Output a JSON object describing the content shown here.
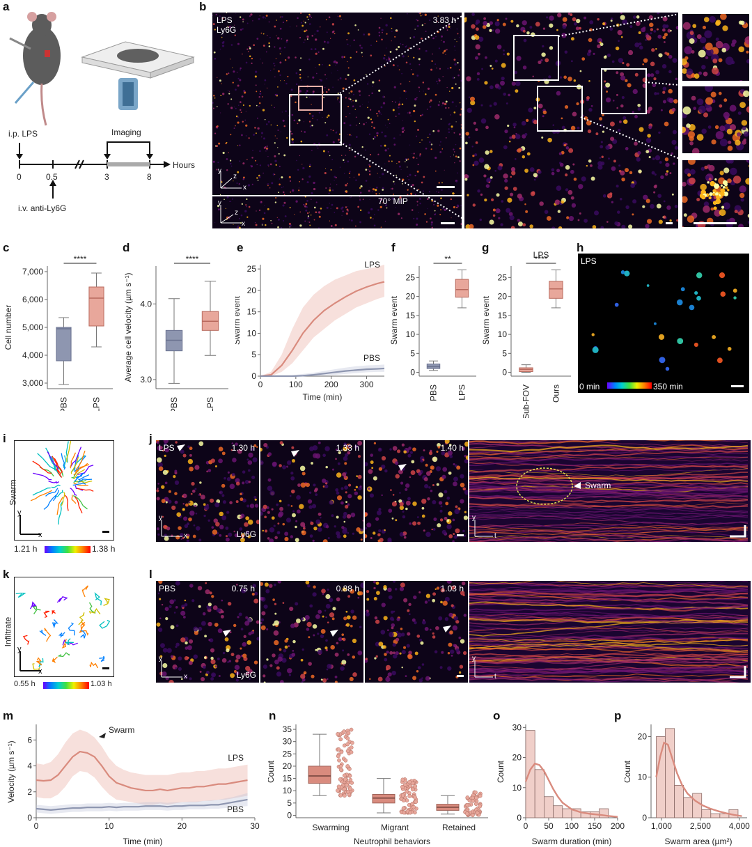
{
  "panel_labels": [
    "a",
    "b",
    "c",
    "d",
    "e",
    "f",
    "g",
    "h",
    "i",
    "j",
    "k",
    "l",
    "m",
    "n",
    "o",
    "p"
  ],
  "colors": {
    "lps": "#d98b7e",
    "lps_fill": "#e8a79b",
    "pbs": "#8e96b0",
    "pbs_fill": "#b9c0d6",
    "inferno_bg": "#0d0418"
  },
  "panel_a": {
    "ip_label": "i.p. LPS",
    "iv_label": "i.v. anti-Ly6G",
    "imaging_label": "Imaging",
    "axis_label": "Hours",
    "ticks": [
      "0",
      "0.5",
      "3",
      "8"
    ]
  },
  "panel_b": {
    "label_lps": "LPS",
    "label_ly6g": "Ly6G",
    "time": "3.83 h",
    "mip_label": "70° MIP",
    "axes": {
      "y": "y",
      "z": "z",
      "x": "x"
    }
  },
  "panel_h": {
    "label": "LPS",
    "colorbar_min": "0 min",
    "colorbar_max": "350 min"
  },
  "panel_i": {
    "side_label": "Swarm",
    "colorbar_min": "1.21 h",
    "colorbar_max": "1.38 h",
    "axes": {
      "y": "y",
      "x": "x"
    }
  },
  "panel_j": {
    "label": "LPS",
    "times": [
      "1.30 h",
      "1.33 h",
      "1.40 h"
    ],
    "stain": "Ly6G",
    "swarm_label": "Swarm",
    "axes": {
      "y": "y",
      "x": "x",
      "t": "t"
    }
  },
  "panel_k": {
    "side_label": "Infiltrate",
    "colorbar_min": "0.55 h",
    "colorbar_max": "1.03 h",
    "axes": {
      "y": "y",
      "x": "x"
    }
  },
  "panel_l": {
    "label": "PBS",
    "times": [
      "0.75 h",
      "0.88 h",
      "1.03 h"
    ],
    "stain": "Ly6G",
    "axes": {
      "y": "y",
      "x": "x",
      "t": "t"
    }
  },
  "chart_data": [
    {
      "id": "c",
      "type": "box",
      "ylabel": "Cell number",
      "categories": [
        "PBS",
        "LPS"
      ],
      "ylim": [
        2800,
        7200
      ],
      "yticks": [
        3000,
        4000,
        5000,
        6000,
        7000
      ],
      "ytick_labels": [
        "3,000",
        "4,000",
        "5,000",
        "6,000",
        "7,000"
      ],
      "boxes": [
        {
          "min": 2950,
          "q1": 3800,
          "median": 4950,
          "q3": 5000,
          "max": 5350
        },
        {
          "min": 4300,
          "q1": 5050,
          "median": 6050,
          "q3": 6450,
          "max": 6950
        }
      ],
      "significance": "****"
    },
    {
      "id": "d",
      "type": "box",
      "ylabel": "Average cell velocity (µm s⁻¹)",
      "categories": [
        "PBS",
        "LPS"
      ],
      "ylim": [
        2.88,
        4.5
      ],
      "yticks": [
        3.0,
        4.0
      ],
      "ytick_labels": [
        "3.0",
        "4.0"
      ],
      "boxes": [
        {
          "min": 2.95,
          "q1": 3.38,
          "median": 3.52,
          "q3": 3.65,
          "max": 4.07
        },
        {
          "min": 3.32,
          "q1": 3.65,
          "median": 3.77,
          "q3": 3.9,
          "max": 4.3
        }
      ],
      "significance": "****"
    },
    {
      "id": "e",
      "type": "line",
      "xlabel": "Time (min)",
      "ylabel": "Swarm event",
      "xlim": [
        0,
        350
      ],
      "ylim": [
        0,
        26
      ],
      "xticks": [
        0,
        100,
        200,
        300
      ],
      "yticks": [
        0,
        5,
        10,
        15,
        20,
        25
      ],
      "series": [
        {
          "name": "LPS",
          "x": [
            0,
            30,
            60,
            90,
            120,
            150,
            180,
            210,
            240,
            270,
            300,
            330,
            350
          ],
          "y": [
            0,
            0.3,
            2.5,
            6,
            10,
            13,
            15.3,
            17,
            18.5,
            19.8,
            20.8,
            21.6,
            22
          ],
          "lo": [
            0,
            0,
            1,
            3,
            6,
            9,
            11,
            13,
            14.5,
            16,
            17,
            18,
            18.5
          ],
          "hi": [
            0,
            1,
            5,
            11,
            16,
            19,
            21,
            22.5,
            23.5,
            24.5,
            25,
            25.5,
            26
          ]
        },
        {
          "name": "PBS",
          "x": [
            0,
            30,
            60,
            90,
            120,
            150,
            180,
            210,
            240,
            270,
            300,
            330,
            350
          ],
          "y": [
            0,
            0,
            0,
            0,
            0.1,
            0.3,
            0.6,
            0.9,
            1.2,
            1.4,
            1.6,
            1.7,
            1.8
          ],
          "lo": [
            0,
            0,
            0,
            0,
            0,
            0,
            0.1,
            0.3,
            0.5,
            0.7,
            0.9,
            1,
            1
          ],
          "hi": [
            0,
            0,
            0,
            0.2,
            0.5,
            0.8,
            1.2,
            1.6,
            2,
            2.3,
            2.5,
            2.6,
            2.7
          ]
        }
      ]
    },
    {
      "id": "f",
      "type": "box",
      "ylabel": "Swarm event",
      "categories": [
        "PBS",
        "LPS"
      ],
      "ylim": [
        -1,
        28
      ],
      "yticks": [
        0,
        5,
        10,
        15,
        20,
        25
      ],
      "boxes": [
        {
          "min": 0.5,
          "q1": 1,
          "median": 1.5,
          "q3": 2.2,
          "max": 3
        },
        {
          "min": 17,
          "q1": 19.8,
          "median": 21.8,
          "q3": 24.5,
          "max": 27
        }
      ],
      "significance": "**"
    },
    {
      "id": "g",
      "type": "box",
      "ylabel": "Swarm event",
      "title": "LPS",
      "categories": [
        "Sub-FOV",
        "Ours"
      ],
      "ylim": [
        -1,
        28
      ],
      "yticks": [
        0,
        5,
        10,
        15,
        20,
        25
      ],
      "boxes": [
        {
          "min": 0,
          "q1": 0.2,
          "median": 0.8,
          "q3": 1.2,
          "max": 2
        },
        {
          "min": 17,
          "q1": 19.5,
          "median": 22,
          "q3": 24,
          "max": 27
        }
      ],
      "significance": "****"
    },
    {
      "id": "m",
      "type": "line",
      "xlabel": "Time (min)",
      "ylabel": "Velocity (µm s⁻¹)",
      "annotation": "Swarm",
      "xlim": [
        0,
        30
      ],
      "ylim": [
        0,
        7.2
      ],
      "xticks": [
        0,
        10,
        20,
        30
      ],
      "yticks": [
        0,
        2,
        4,
        6
      ],
      "series": [
        {
          "name": "LPS",
          "x": [
            0,
            1,
            2,
            3,
            4,
            5,
            6,
            7,
            8,
            9,
            10,
            11,
            12,
            13,
            14,
            15,
            16,
            17,
            18,
            19,
            20,
            21,
            22,
            23,
            24,
            25,
            26,
            27,
            28,
            29
          ],
          "y": [
            2.9,
            2.85,
            2.9,
            3.3,
            4,
            4.7,
            5.1,
            5,
            4.7,
            4,
            3.2,
            2.7,
            2.5,
            2.3,
            2.2,
            2.1,
            2.1,
            2.2,
            2.1,
            2.2,
            2.3,
            2.3,
            2.4,
            2.4,
            2.5,
            2.6,
            2.6,
            2.7,
            2.8,
            2.9
          ],
          "lo": [
            1.6,
            1.5,
            1.5,
            1.8,
            2.4,
            3.2,
            3.6,
            3.5,
            3.1,
            2.4,
            1.8,
            1.4,
            1.3,
            1.2,
            1.1,
            1,
            1,
            1.1,
            1,
            1.1,
            1.2,
            1.2,
            1.2,
            1.3,
            1.3,
            1.4,
            1.4,
            1.5,
            1.6,
            1.7
          ],
          "hi": [
            4.2,
            4.1,
            4.3,
            4.9,
            5.8,
            6.5,
            6.8,
            6.6,
            6.2,
            5.5,
            4.6,
            4,
            3.7,
            3.5,
            3.4,
            3.3,
            3.3,
            3.3,
            3.3,
            3.4,
            3.5,
            3.5,
            3.6,
            3.6,
            3.7,
            3.8,
            3.8,
            3.9,
            4,
            4.1
          ]
        },
        {
          "name": "PBS",
          "x": [
            0,
            1,
            2,
            3,
            4,
            5,
            6,
            7,
            8,
            9,
            10,
            11,
            12,
            13,
            14,
            15,
            16,
            17,
            18,
            19,
            20,
            21,
            22,
            23,
            24,
            25,
            26,
            27,
            28,
            29
          ],
          "y": [
            0.7,
            0.65,
            0.6,
            0.65,
            0.7,
            0.75,
            0.75,
            0.8,
            0.8,
            0.8,
            0.85,
            0.8,
            0.85,
            0.85,
            0.85,
            0.9,
            0.9,
            0.9,
            0.85,
            0.9,
            0.9,
            0.95,
            0.95,
            0.95,
            1,
            1,
            1.1,
            1.2,
            1.3,
            1.4
          ],
          "lo": [
            0.4,
            0.35,
            0.3,
            0.35,
            0.4,
            0.45,
            0.45,
            0.5,
            0.5,
            0.5,
            0.55,
            0.5,
            0.55,
            0.55,
            0.55,
            0.6,
            0.6,
            0.6,
            0.55,
            0.6,
            0.6,
            0.65,
            0.65,
            0.65,
            0.7,
            0.7,
            0.75,
            0.8,
            0.85,
            0.9
          ],
          "hi": [
            1,
            0.95,
            0.9,
            0.95,
            1,
            1.05,
            1.05,
            1.1,
            1.1,
            1.1,
            1.15,
            1.1,
            1.15,
            1.15,
            1.15,
            1.2,
            1.2,
            1.2,
            1.15,
            1.2,
            1.2,
            1.25,
            1.25,
            1.3,
            1.35,
            1.4,
            1.5,
            1.6,
            1.75,
            1.9
          ]
        }
      ]
    },
    {
      "id": "n",
      "type": "box",
      "xlabel": "Neutrophil behaviors",
      "ylabel": "Count",
      "categories": [
        "Swarming",
        "Migrant",
        "Retained"
      ],
      "ylim": [
        -1,
        37
      ],
      "yticks": [
        0,
        5,
        10,
        15,
        20,
        25,
        30,
        35
      ],
      "boxes": [
        {
          "min": 8,
          "q1": 13,
          "median": 16,
          "q3": 20,
          "max": 33
        },
        {
          "min": 1,
          "q1": 5,
          "median": 7,
          "q3": 8.5,
          "max": 15
        },
        {
          "min": 0.5,
          "q1": 2,
          "median": 3.3,
          "q3": 4.5,
          "max": 8
        }
      ],
      "points_range": [
        [
          8,
          35
        ],
        [
          1,
          15
        ],
        [
          0,
          10
        ]
      ]
    },
    {
      "id": "o",
      "type": "histogram",
      "xlabel": "Swarm duration (min)",
      "ylabel": "Count",
      "xlim": [
        0,
        200
      ],
      "ylim": [
        0,
        31
      ],
      "xticks": [
        0,
        50,
        100,
        150,
        200
      ],
      "yticks": [
        0,
        10,
        20,
        30
      ],
      "bin_edges": [
        0,
        20,
        40,
        60,
        80,
        100,
        120,
        140,
        160,
        180,
        200
      ],
      "counts": [
        29,
        16,
        7,
        4,
        3,
        3,
        2,
        2,
        3,
        0
      ],
      "kde_x": [
        0,
        10,
        20,
        30,
        40,
        50,
        60,
        70,
        80,
        100,
        120,
        140,
        160,
        180,
        200
      ],
      "kde_y": [
        12,
        16,
        18,
        17.5,
        15.5,
        12.5,
        9.5,
        7,
        5,
        2.8,
        1.8,
        1.3,
        1,
        0.6,
        0.3
      ]
    },
    {
      "id": "p",
      "type": "histogram",
      "xlabel": "Swarm area (µm²)",
      "ylabel": "Count",
      "xlim": [
        600,
        4300
      ],
      "ylim": [
        0,
        23
      ],
      "xticks": [
        1000,
        2500,
        4000
      ],
      "xtick_labels": [
        "1,000",
        "2,500",
        "4,000"
      ],
      "yticks": [
        0,
        10,
        20
      ],
      "bin_edges": [
        800,
        1150,
        1500,
        1850,
        2200,
        2550,
        2900,
        3250,
        3600,
        3950
      ],
      "counts": [
        20,
        22,
        8,
        5,
        6,
        2,
        1,
        1,
        2
      ],
      "kde_x": [
        800,
        950,
        1100,
        1250,
        1400,
        1600,
        1800,
        2000,
        2300,
        2600,
        2900,
        3200,
        3500,
        3800,
        4100
      ],
      "kde_y": [
        10,
        15,
        18.5,
        18,
        15,
        11,
        8,
        6,
        4.2,
        3,
        2.2,
        1.6,
        1.1,
        0.7,
        0.4
      ]
    }
  ]
}
